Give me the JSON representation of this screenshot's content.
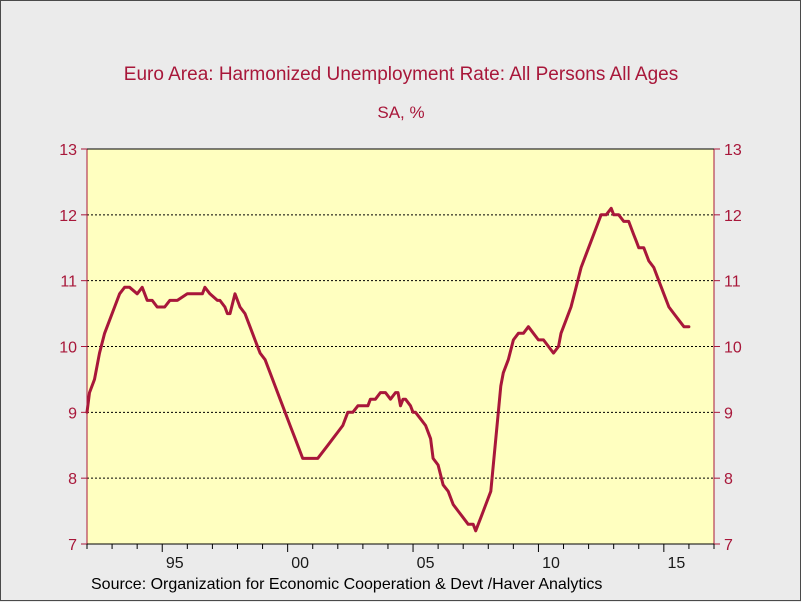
{
  "chart_data": {
    "type": "line",
    "title": "Euro Area: Harmonized Unemployment Rate: All Persons All Ages",
    "subtitle": "SA, %",
    "source": "Source:  Organization for Economic Cooperation & Devt /Haver Analytics",
    "xlabel": "",
    "ylabel": "",
    "xlim": [
      1992.0,
      2017.0
    ],
    "ylim": [
      7,
      13
    ],
    "y_ticks": [
      7,
      8,
      9,
      10,
      11,
      12,
      13
    ],
    "x_tick_labels": [
      {
        "x": 1995,
        "label": "95"
      },
      {
        "x": 2000,
        "label": "00"
      },
      {
        "x": 2005,
        "label": "05"
      },
      {
        "x": 2010,
        "label": "10"
      },
      {
        "x": 2015,
        "label": "15"
      }
    ],
    "grid": "horizontal dotted",
    "axis_color": "#a8173a",
    "plot_background": "#ffffc0",
    "line_color": "#a8173a",
    "series": [
      {
        "x": [
          1992.0,
          1992.1,
          1992.3,
          1992.5,
          1992.7,
          1992.9,
          1993.1,
          1993.3,
          1993.5,
          1993.7,
          1994.0,
          1994.2,
          1994.3,
          1994.4,
          1994.6,
          1994.8,
          1995.0,
          1995.1,
          1995.3,
          1995.6,
          1996.0,
          1996.3,
          1996.5,
          1996.6,
          1996.7,
          1996.9,
          1997.2,
          1997.3,
          1997.5,
          1997.6,
          1997.7,
          1997.9,
          1998.1,
          1998.3,
          1998.5,
          1998.7,
          1998.9,
          1999.1,
          1999.3,
          1999.5,
          1999.7,
          1999.9,
          2000.1,
          2000.3,
          2000.6,
          2000.8,
          2001.0,
          2001.2,
          2001.4,
          2001.6,
          2001.8,
          2002.0,
          2002.2,
          2002.4,
          2002.6,
          2002.8,
          2003.0,
          2003.2,
          2003.3,
          2003.5,
          2003.7,
          2003.8,
          2003.9,
          2004.1,
          2004.3,
          2004.4,
          2004.5,
          2004.6,
          2004.7,
          2004.9,
          2005.0,
          2005.1,
          2005.3,
          2005.5,
          2005.7,
          2005.8,
          2006.0,
          2006.2,
          2006.4,
          2006.6,
          2006.8,
          2007.0,
          2007.2,
          2007.4,
          2007.5,
          2007.7,
          2007.8,
          2007.9,
          2008.1,
          2008.3,
          2008.5,
          2008.6,
          2008.8,
          2009.0,
          2009.2,
          2009.4,
          2009.6,
          2009.8,
          2010.0,
          2010.2,
          2010.4,
          2010.6,
          2010.8,
          2010.9,
          2011.1,
          2011.3,
          2011.5,
          2011.7,
          2011.9,
          2012.1,
          2012.3,
          2012.5,
          2012.7,
          2012.9,
          2013.0,
          2013.2,
          2013.4,
          2013.6,
          2013.8,
          2013.9,
          2014.0,
          2014.2,
          2014.4,
          2014.6,
          2014.8,
          2015.0,
          2015.2,
          2015.4,
          2015.6,
          2015.8,
          2016.0
        ],
        "values": [
          9.0,
          9.3,
          9.5,
          9.9,
          10.2,
          10.4,
          10.6,
          10.8,
          10.9,
          10.9,
          10.8,
          10.9,
          10.8,
          10.7,
          10.7,
          10.6,
          10.6,
          10.6,
          10.7,
          10.7,
          10.8,
          10.8,
          10.8,
          10.8,
          10.9,
          10.8,
          10.7,
          10.7,
          10.6,
          10.5,
          10.5,
          10.8,
          10.6,
          10.5,
          10.3,
          10.1,
          9.9,
          9.8,
          9.6,
          9.4,
          9.2,
          9.0,
          8.8,
          8.6,
          8.3,
          8.3,
          8.3,
          8.3,
          8.4,
          8.5,
          8.6,
          8.7,
          8.8,
          9.0,
          9.0,
          9.1,
          9.1,
          9.1,
          9.2,
          9.2,
          9.3,
          9.3,
          9.3,
          9.2,
          9.3,
          9.3,
          9.1,
          9.2,
          9.2,
          9.1,
          9.0,
          9.0,
          8.9,
          8.8,
          8.6,
          8.3,
          8.2,
          7.9,
          7.8,
          7.6,
          7.5,
          7.4,
          7.3,
          7.3,
          7.2,
          7.4,
          7.5,
          7.6,
          7.8,
          8.6,
          9.4,
          9.6,
          9.8,
          10.1,
          10.2,
          10.2,
          10.3,
          10.2,
          10.1,
          10.1,
          10.0,
          9.9,
          10.0,
          10.2,
          10.4,
          10.6,
          10.9,
          11.2,
          11.4,
          11.6,
          11.8,
          12.0,
          12.0,
          12.1,
          12.0,
          12.0,
          11.9,
          11.9,
          11.7,
          11.6,
          11.5,
          11.5,
          11.3,
          11.2,
          11.0,
          10.8,
          10.6,
          10.5,
          10.4,
          10.3,
          10.3
        ]
      }
    ]
  }
}
